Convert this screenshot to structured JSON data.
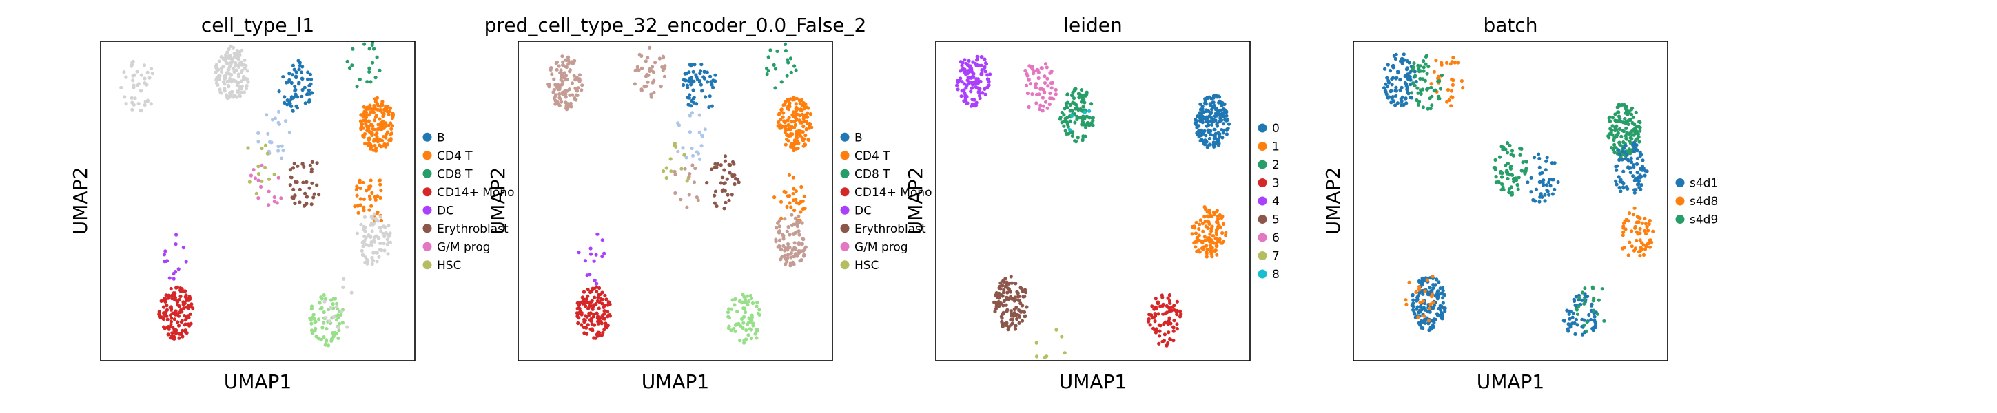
{
  "chart_data": [
    {
      "type": "scatter",
      "title": "cell_type_l1",
      "xlabel": "UMAP1",
      "ylabel": "UMAP2",
      "legend": "right",
      "grid": false,
      "categories": [
        {
          "name": "B",
          "color": "#1f77b4"
        },
        {
          "name": "CD4 T",
          "color": "#ff7f0e"
        },
        {
          "name": "CD8 T",
          "color": "#279e68"
        },
        {
          "name": "CD14+ Mono",
          "color": "#d62728"
        },
        {
          "name": "DC",
          "color": "#aa40fc"
        },
        {
          "name": "Erythroblast",
          "color": "#8c564b"
        },
        {
          "name": "G/M prog",
          "color": "#e377c2"
        },
        {
          "name": "HSC",
          "color": "#b5bd61"
        }
      ],
      "clusters": [
        {
          "x": 0.42,
          "y": 0.9,
          "color": "#d3d3d3",
          "n": 140
        },
        {
          "x": 0.12,
          "y": 0.86,
          "color": "#d3d3d3",
          "n": 40
        },
        {
          "x": 0.62,
          "y": 0.86,
          "color": "#1f77b4",
          "n": 60
        },
        {
          "x": 0.55,
          "y": 0.7,
          "color": "#aec7e8",
          "n": 20
        },
        {
          "x": 0.84,
          "y": 0.93,
          "color": "#279e68",
          "n": 20
        },
        {
          "x": 0.88,
          "y": 0.74,
          "color": "#ff7f0e",
          "n": 160
        },
        {
          "x": 0.86,
          "y": 0.5,
          "color": "#ff7f0e",
          "n": 40
        },
        {
          "x": 0.87,
          "y": 0.38,
          "color": "#d3d3d3",
          "n": 80
        },
        {
          "x": 0.5,
          "y": 0.6,
          "color": "#b5bd61",
          "n": 12
        },
        {
          "x": 0.65,
          "y": 0.56,
          "color": "#8c564b",
          "n": 40
        },
        {
          "x": 0.53,
          "y": 0.55,
          "color": "#e377c2",
          "n": 14
        },
        {
          "x": 0.24,
          "y": 0.15,
          "color": "#d62728",
          "n": 140
        },
        {
          "x": 0.23,
          "y": 0.32,
          "color": "#aa40fc",
          "n": 14
        },
        {
          "x": 0.72,
          "y": 0.13,
          "color": "#98df8a",
          "n": 70
        },
        {
          "x": 0.76,
          "y": 0.18,
          "color": "#d3d3d3",
          "n": 12
        }
      ]
    },
    {
      "type": "scatter",
      "title": "pred_cell_type_32_encoder_0.0_False_2",
      "xlabel": "UMAP1",
      "ylabel": "UMAP2",
      "legend": "right",
      "grid": false,
      "categories": [
        {
          "name": "B",
          "color": "#1f77b4"
        },
        {
          "name": "CD4 T",
          "color": "#ff7f0e"
        },
        {
          "name": "CD8 T",
          "color": "#279e68"
        },
        {
          "name": "CD14+ Mono",
          "color": "#d62728"
        },
        {
          "name": "DC",
          "color": "#aa40fc"
        },
        {
          "name": "Erythroblast",
          "color": "#8c564b"
        },
        {
          "name": "G/M prog",
          "color": "#e377c2"
        },
        {
          "name": "HSC",
          "color": "#b5bd61"
        }
      ],
      "clusters": [
        {
          "x": 0.15,
          "y": 0.87,
          "color": "#c49c94",
          "n": 110
        },
        {
          "x": 0.42,
          "y": 0.9,
          "color": "#c49c94",
          "n": 40
        },
        {
          "x": 0.58,
          "y": 0.86,
          "color": "#1f77b4",
          "n": 60
        },
        {
          "x": 0.55,
          "y": 0.7,
          "color": "#aec7e8",
          "n": 20
        },
        {
          "x": 0.84,
          "y": 0.93,
          "color": "#279e68",
          "n": 20
        },
        {
          "x": 0.88,
          "y": 0.74,
          "color": "#ff7f0e",
          "n": 160
        },
        {
          "x": 0.86,
          "y": 0.5,
          "color": "#ff7f0e",
          "n": 30
        },
        {
          "x": 0.87,
          "y": 0.38,
          "color": "#c49c94",
          "n": 90
        },
        {
          "x": 0.5,
          "y": 0.6,
          "color": "#b5bd61",
          "n": 12
        },
        {
          "x": 0.65,
          "y": 0.56,
          "color": "#8c564b",
          "n": 40
        },
        {
          "x": 0.53,
          "y": 0.55,
          "color": "#c49c94",
          "n": 14
        },
        {
          "x": 0.24,
          "y": 0.15,
          "color": "#d62728",
          "n": 140
        },
        {
          "x": 0.23,
          "y": 0.32,
          "color": "#aa40fc",
          "n": 14
        },
        {
          "x": 0.72,
          "y": 0.13,
          "color": "#98df8a",
          "n": 70
        }
      ]
    },
    {
      "type": "scatter",
      "title": "leiden",
      "xlabel": "UMAP1",
      "ylabel": "UMAP2",
      "legend": "right",
      "grid": false,
      "categories": [
        {
          "name": "0",
          "color": "#1f77b4"
        },
        {
          "name": "1",
          "color": "#ff7f0e"
        },
        {
          "name": "2",
          "color": "#279e68"
        },
        {
          "name": "3",
          "color": "#d62728"
        },
        {
          "name": "4",
          "color": "#aa40fc"
        },
        {
          "name": "5",
          "color": "#8c564b"
        },
        {
          "name": "6",
          "color": "#e377c2"
        },
        {
          "name": "7",
          "color": "#b5bd61"
        },
        {
          "name": "8",
          "color": "#17becf"
        }
      ],
      "clusters": [
        {
          "x": 0.12,
          "y": 0.88,
          "color": "#aa40fc",
          "n": 120
        },
        {
          "x": 0.33,
          "y": 0.86,
          "color": "#e377c2",
          "n": 60
        },
        {
          "x": 0.45,
          "y": 0.77,
          "color": "#279e68",
          "n": 110
        },
        {
          "x": 0.88,
          "y": 0.75,
          "color": "#1f77b4",
          "n": 180
        },
        {
          "x": 0.87,
          "y": 0.4,
          "color": "#ff7f0e",
          "n": 110
        },
        {
          "x": 0.24,
          "y": 0.18,
          "color": "#8c564b",
          "n": 120
        },
        {
          "x": 0.36,
          "y": 0.05,
          "color": "#b5bd61",
          "n": 8
        },
        {
          "x": 0.73,
          "y": 0.13,
          "color": "#d62728",
          "n": 80
        },
        {
          "x": 0.46,
          "y": 0.77,
          "color": "#17becf",
          "n": 4
        }
      ]
    },
    {
      "type": "scatter",
      "title": "batch",
      "xlabel": "UMAP1",
      "ylabel": "UMAP2",
      "legend": "right",
      "grid": false,
      "categories": [
        {
          "name": "s4d1",
          "color": "#1f77b4"
        },
        {
          "name": "s4d8",
          "color": "#ff7f0e"
        },
        {
          "name": "s4d9",
          "color": "#279e68"
        }
      ],
      "clusters": [
        {
          "x": 0.15,
          "y": 0.88,
          "color": "#1f77b4",
          "n": 90
        },
        {
          "x": 0.3,
          "y": 0.88,
          "color": "#ff7f0e",
          "n": 30
        },
        {
          "x": 0.23,
          "y": 0.87,
          "color": "#279e68",
          "n": 50
        },
        {
          "x": 0.5,
          "y": 0.6,
          "color": "#279e68",
          "n": 70
        },
        {
          "x": 0.6,
          "y": 0.57,
          "color": "#1f77b4",
          "n": 40
        },
        {
          "x": 0.86,
          "y": 0.72,
          "color": "#279e68",
          "n": 140
        },
        {
          "x": 0.88,
          "y": 0.6,
          "color": "#1f77b4",
          "n": 80
        },
        {
          "x": 0.9,
          "y": 0.4,
          "color": "#ff7f0e",
          "n": 60
        },
        {
          "x": 0.24,
          "y": 0.18,
          "color": "#1f77b4",
          "n": 140
        },
        {
          "x": 0.22,
          "y": 0.2,
          "color": "#ff7f0e",
          "n": 20
        },
        {
          "x": 0.72,
          "y": 0.13,
          "color": "#1f77b4",
          "n": 60
        },
        {
          "x": 0.76,
          "y": 0.16,
          "color": "#279e68",
          "n": 20
        }
      ]
    }
  ]
}
